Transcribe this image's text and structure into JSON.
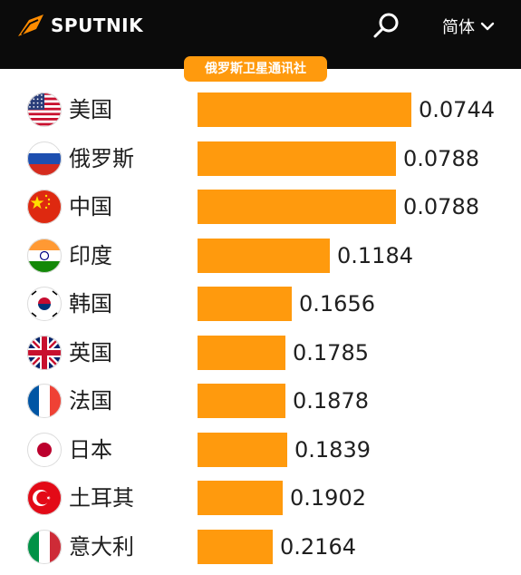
{
  "header": {
    "logo_text": "SPUTNIK",
    "logo_icon": "sputnik-logo-icon",
    "search_icon": "search-icon",
    "language_label": "简体",
    "language_icon": "chevron-down-icon"
  },
  "source_badge": "俄罗斯卫星通讯社",
  "colors": {
    "bar": "#ff9a0d",
    "header_bg": "#0b0b0b"
  },
  "chart_data": {
    "type": "bar",
    "orientation": "horizontal",
    "categories": [
      "美国",
      "俄罗斯",
      "中国",
      "印度",
      "韩国",
      "英国",
      "法国",
      "日本",
      "土耳其",
      "意大利"
    ],
    "values": [
      0.0744,
      0.0788,
      0.0788,
      0.1184,
      0.1656,
      0.1785,
      0.1878,
      0.1839,
      0.1902,
      0.2164
    ],
    "value_labels": [
      "0.0744",
      "0.0788",
      "0.0788",
      "0.1184",
      "0.1656",
      "0.1785",
      "0.1878",
      "0.1839",
      "0.1902",
      "0.2164"
    ],
    "flags": [
      "us",
      "ru",
      "cn",
      "in",
      "kr",
      "gb",
      "fr",
      "jp",
      "tr",
      "it"
    ],
    "bar_length_fraction": [
      1.0,
      0.93,
      0.93,
      0.62,
      0.44,
      0.41,
      0.41,
      0.42,
      0.4,
      0.35
    ]
  }
}
